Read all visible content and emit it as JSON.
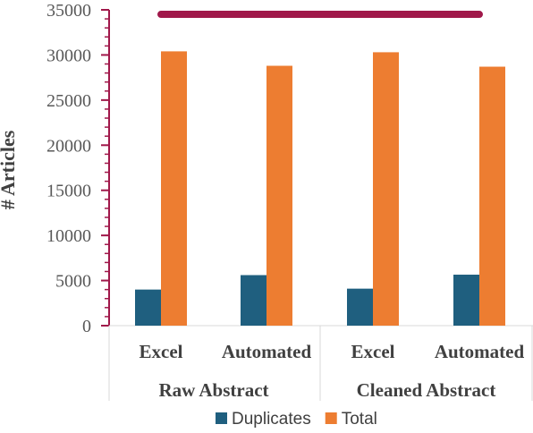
{
  "chart_data": {
    "type": "bar",
    "ylabel": "# Articles",
    "ylim": [
      0,
      35000
    ],
    "y_ticks": [
      0,
      5000,
      10000,
      15000,
      20000,
      25000,
      30000,
      35000
    ],
    "categories": [
      "Excel",
      "Automated",
      "Excel",
      "Automated"
    ],
    "groups": [
      {
        "label": "Raw Abstract",
        "categories": [
          0,
          1
        ]
      },
      {
        "label": "Cleaned Abstract",
        "categories": [
          2,
          3
        ]
      }
    ],
    "series": [
      {
        "name": "Duplicates",
        "color": "#1F5F7F",
        "values": [
          4000,
          5600,
          4100,
          5650
        ]
      },
      {
        "name": "Total",
        "color": "#ED7D31",
        "values": [
          30400,
          28800,
          30300,
          28700
        ]
      }
    ],
    "legend_position": "bottom",
    "grid": false,
    "axis_color": "#A0184A",
    "annotation_line": {
      "color": "#A0184A",
      "y_value": 34500,
      "from_category": 0,
      "to_category": 3
    }
  }
}
